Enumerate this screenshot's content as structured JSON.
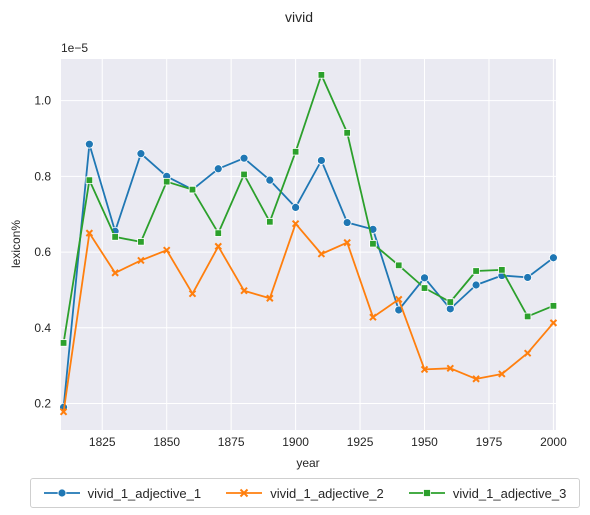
{
  "chart_data": {
    "type": "line",
    "title": "vivid",
    "xlabel": "year",
    "ylabel": "lexicon%",
    "y_scale_label": "1e−5",
    "x": [
      1810,
      1820,
      1830,
      1840,
      1850,
      1860,
      1870,
      1880,
      1890,
      1900,
      1910,
      1920,
      1930,
      1940,
      1950,
      1960,
      1970,
      1980,
      1990,
      2000
    ],
    "xlim": [
      1809,
      2001
    ],
    "ylim": [
      0.13,
      1.11
    ],
    "xticks": [
      "1825",
      "1850",
      "1875",
      "1900",
      "1925",
      "1950",
      "1975",
      "2000"
    ],
    "yticks": [
      "0.2",
      "0.4",
      "0.6",
      "0.8",
      "1.0"
    ],
    "grid": true,
    "legend_position": "bottom",
    "series": [
      {
        "name": "vivid_1_adjective_1",
        "color": "#1f77b4",
        "marker": "circle",
        "values": [
          0.19,
          0.885,
          0.655,
          0.86,
          0.8,
          0.765,
          0.82,
          0.848,
          0.79,
          0.718,
          0.842,
          0.678,
          0.66,
          0.447,
          0.532,
          0.45,
          0.513,
          0.538,
          0.533,
          0.585
        ]
      },
      {
        "name": "vivid_1_adjective_2",
        "color": "#ff7f0e",
        "marker": "x",
        "values": [
          0.178,
          0.65,
          0.545,
          0.578,
          0.605,
          0.49,
          0.615,
          0.498,
          0.478,
          0.675,
          0.595,
          0.625,
          0.428,
          0.475,
          0.29,
          0.293,
          0.265,
          0.278,
          0.333,
          0.413
        ]
      },
      {
        "name": "vivid_1_adjective_3",
        "color": "#2ca02c",
        "marker": "square",
        "values": [
          0.36,
          0.79,
          0.64,
          0.627,
          0.786,
          0.765,
          0.65,
          0.805,
          0.68,
          0.865,
          1.068,
          0.915,
          0.622,
          0.565,
          0.505,
          0.468,
          0.55,
          0.553,
          0.43,
          0.458
        ]
      }
    ]
  }
}
